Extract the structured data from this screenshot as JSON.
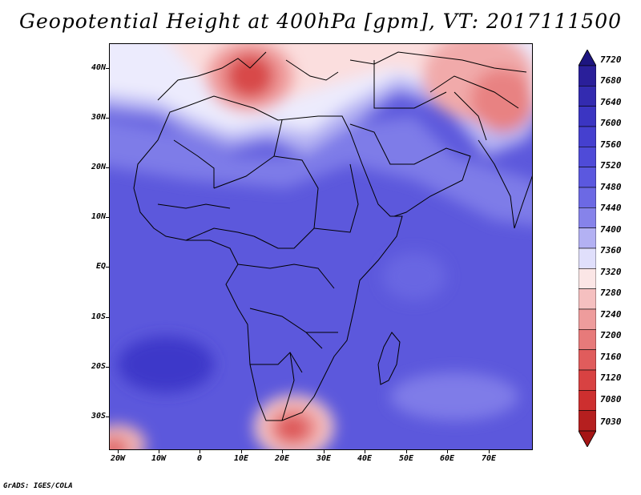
{
  "title": "Geopotential Height at 400hPa [gpm], VT: 2017111500",
  "footer": "GrADS: IGES/COLA",
  "lat_labels": [
    "40N",
    "30N",
    "20N",
    "10N",
    "EQ",
    "10S",
    "20S",
    "30S"
  ],
  "lon_labels": [
    "20W",
    "10W",
    "0",
    "10E",
    "20E",
    "30E",
    "40E",
    "50E",
    "60E",
    "70E"
  ],
  "colorbar": {
    "levels": [
      "7720",
      "7680",
      "7640",
      "7600",
      "7560",
      "7520",
      "7480",
      "7440",
      "7400",
      "7360",
      "7320",
      "7280",
      "7240",
      "7200",
      "7160",
      "7120",
      "7080",
      "7030"
    ],
    "colors": [
      "#2a1f9a",
      "#332bb0",
      "#3b35c2",
      "#4540cf",
      "#4f4bd8",
      "#5b58df",
      "#6c69e4",
      "#8683ea",
      "#b3b1f3",
      "#e0dffb",
      "#fbe6e6",
      "#f5c0c0",
      "#ee9c9c",
      "#e77a7a",
      "#e05c5c",
      "#d84242",
      "#cd2f2f",
      "#b51f1f"
    ],
    "top_arrow_color": "#1d1580",
    "bottom_arrow_color": "#a51515"
  }
}
